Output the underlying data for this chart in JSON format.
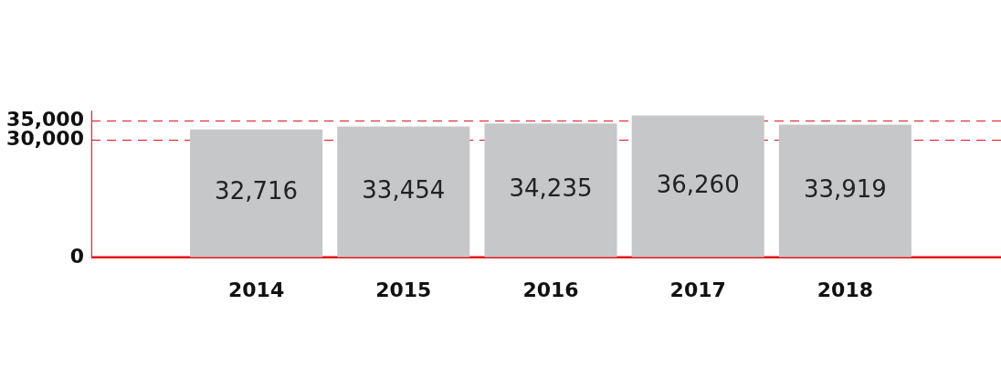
{
  "chart_data": {
    "type": "bar",
    "categories": [
      "2014",
      "2015",
      "2016",
      "2017",
      "2018"
    ],
    "values": [
      32716,
      33454,
      34235,
      36260,
      33919
    ],
    "value_labels": [
      "32,716",
      "33,454",
      "34,235",
      "36,260",
      "33,919"
    ],
    "color": "#c6c7c9",
    "ylim": [
      0,
      37500
    ],
    "yticks": [
      0,
      {
        "value": 30000,
        "label": "30,000"
      },
      {
        "value": 35000,
        "label": "35,000"
      }
    ],
    "grid": "y",
    "legend": false
  }
}
